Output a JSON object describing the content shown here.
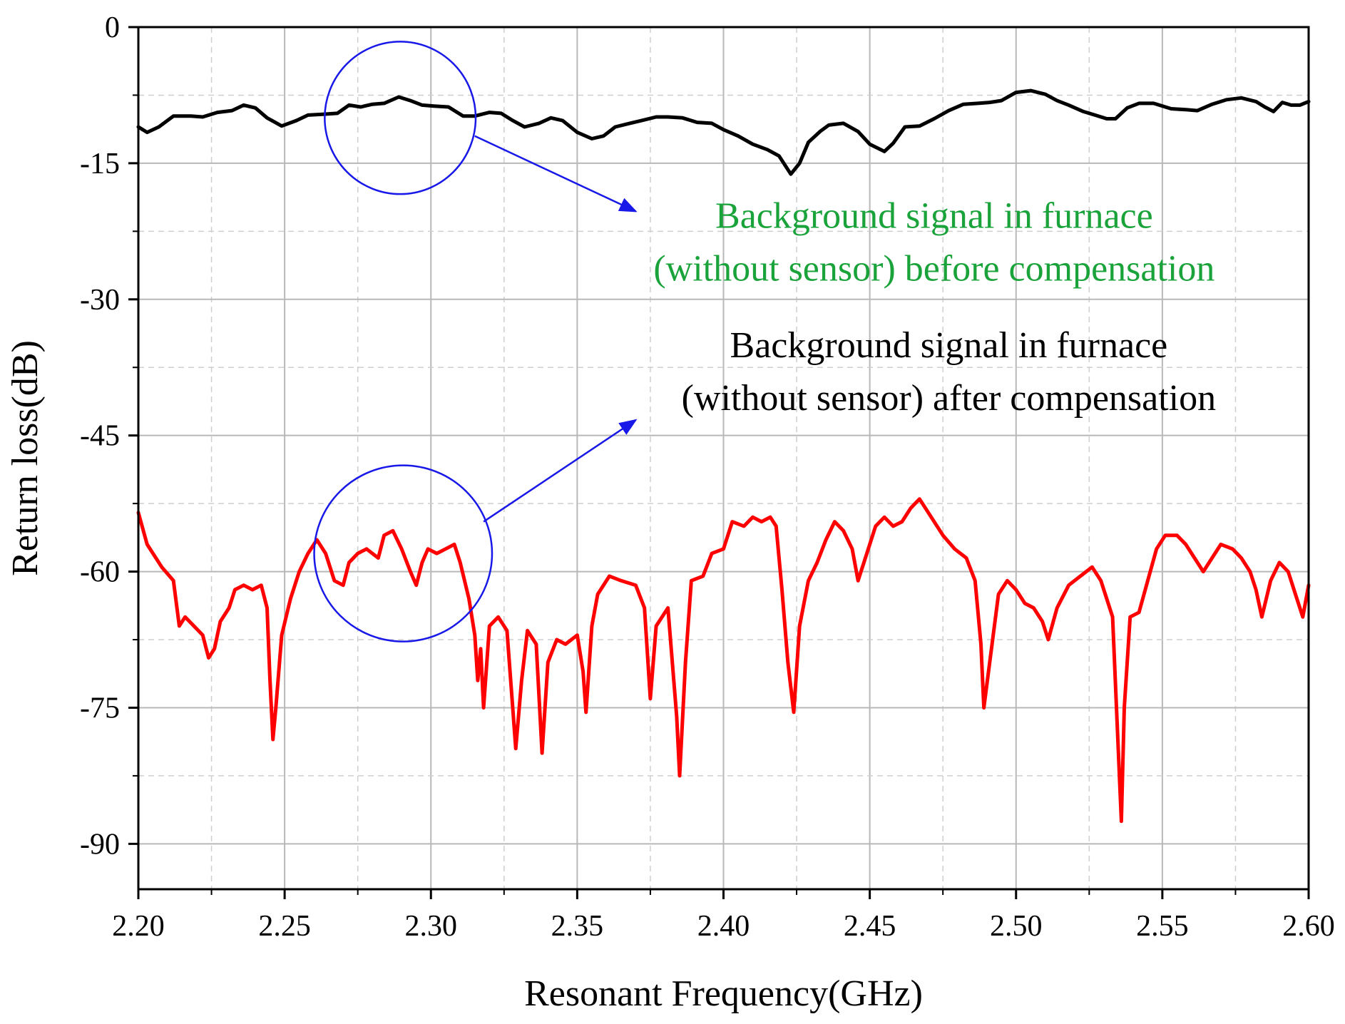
{
  "chart_data": {
    "type": "line",
    "xlabel": "Resonant Frequency(GHz)",
    "ylabel": "Return loss(dB)",
    "xlim": [
      2.2,
      2.6
    ],
    "ylim": [
      -95,
      0
    ],
    "x_ticks": [
      "2.20",
      "2.25",
      "2.30",
      "2.35",
      "2.40",
      "2.45",
      "2.50",
      "2.55",
      "2.60"
    ],
    "y_ticks": [
      "0",
      "-15",
      "-30",
      "-45",
      "-60",
      "-75",
      "-90"
    ],
    "grid": true,
    "series": [
      {
        "color": "#000000",
        "points": [
          [
            2.2,
            -11.0
          ],
          [
            2.203,
            -11.6
          ],
          [
            2.207,
            -11.0
          ],
          [
            2.212,
            -9.8
          ],
          [
            2.218,
            -9.8
          ],
          [
            2.222,
            -9.9
          ],
          [
            2.227,
            -9.4
          ],
          [
            2.232,
            -9.2
          ],
          [
            2.236,
            -8.6
          ],
          [
            2.24,
            -8.9
          ],
          [
            2.244,
            -10.0
          ],
          [
            2.249,
            -10.9
          ],
          [
            2.254,
            -10.3
          ],
          [
            2.258,
            -9.7
          ],
          [
            2.263,
            -9.6
          ],
          [
            2.268,
            -9.5
          ],
          [
            2.272,
            -8.6
          ],
          [
            2.276,
            -8.8
          ],
          [
            2.28,
            -8.5
          ],
          [
            2.284,
            -8.4
          ],
          [
            2.289,
            -7.7
          ],
          [
            2.293,
            -8.1
          ],
          [
            2.297,
            -8.6
          ],
          [
            2.301,
            -8.7
          ],
          [
            2.306,
            -8.8
          ],
          [
            2.311,
            -9.8
          ],
          [
            2.315,
            -9.8
          ],
          [
            2.32,
            -9.4
          ],
          [
            2.324,
            -9.5
          ],
          [
            2.328,
            -10.3
          ],
          [
            2.332,
            -11.0
          ],
          [
            2.337,
            -10.6
          ],
          [
            2.341,
            -10.0
          ],
          [
            2.345,
            -10.3
          ],
          [
            2.35,
            -11.6
          ],
          [
            2.355,
            -12.3
          ],
          [
            2.359,
            -12.0
          ],
          [
            2.363,
            -11.0
          ],
          [
            2.368,
            -10.6
          ],
          [
            2.372,
            -10.3
          ],
          [
            2.377,
            -9.9
          ],
          [
            2.381,
            -9.9
          ],
          [
            2.386,
            -10.0
          ],
          [
            2.391,
            -10.5
          ],
          [
            2.396,
            -10.6
          ],
          [
            2.4,
            -11.3
          ],
          [
            2.405,
            -12.0
          ],
          [
            2.41,
            -12.9
          ],
          [
            2.415,
            -13.5
          ],
          [
            2.419,
            -14.2
          ],
          [
            2.423,
            -16.2
          ],
          [
            2.426,
            -15.0
          ],
          [
            2.429,
            -12.7
          ],
          [
            2.433,
            -11.5
          ],
          [
            2.436,
            -10.8
          ],
          [
            2.441,
            -10.6
          ],
          [
            2.446,
            -11.5
          ],
          [
            2.45,
            -12.9
          ],
          [
            2.455,
            -13.7
          ],
          [
            2.458,
            -12.8
          ],
          [
            2.462,
            -11.0
          ],
          [
            2.467,
            -10.9
          ],
          [
            2.472,
            -10.1
          ],
          [
            2.477,
            -9.2
          ],
          [
            2.482,
            -8.5
          ],
          [
            2.487,
            -8.4
          ],
          [
            2.491,
            -8.3
          ],
          [
            2.495,
            -8.1
          ],
          [
            2.5,
            -7.2
          ],
          [
            2.505,
            -7.0
          ],
          [
            2.51,
            -7.4
          ],
          [
            2.514,
            -8.1
          ],
          [
            2.518,
            -8.6
          ],
          [
            2.523,
            -9.3
          ],
          [
            2.527,
            -9.7
          ],
          [
            2.531,
            -10.1
          ],
          [
            2.534,
            -10.1
          ],
          [
            2.538,
            -8.9
          ],
          [
            2.542,
            -8.4
          ],
          [
            2.547,
            -8.4
          ],
          [
            2.553,
            -9.0
          ],
          [
            2.558,
            -9.1
          ],
          [
            2.562,
            -9.2
          ],
          [
            2.567,
            -8.5
          ],
          [
            2.572,
            -8.0
          ],
          [
            2.577,
            -7.8
          ],
          [
            2.582,
            -8.2
          ],
          [
            2.585,
            -8.8
          ],
          [
            2.588,
            -9.3
          ],
          [
            2.591,
            -8.3
          ],
          [
            2.594,
            -8.6
          ],
          [
            2.597,
            -8.6
          ],
          [
            2.6,
            -8.2
          ]
        ]
      },
      {
        "color": "#ff0000",
        "points": [
          [
            2.2,
            -53.5
          ],
          [
            2.203,
            -57.0
          ],
          [
            2.205,
            -58.0
          ],
          [
            2.208,
            -59.5
          ],
          [
            2.212,
            -61.0
          ],
          [
            2.214,
            -66.0
          ],
          [
            2.216,
            -65.0
          ],
          [
            2.219,
            -66.0
          ],
          [
            2.222,
            -67.0
          ],
          [
            2.224,
            -69.5
          ],
          [
            2.226,
            -68.5
          ],
          [
            2.228,
            -65.5
          ],
          [
            2.231,
            -64.0
          ],
          [
            2.233,
            -62.0
          ],
          [
            2.236,
            -61.5
          ],
          [
            2.239,
            -62.0
          ],
          [
            2.242,
            -61.5
          ],
          [
            2.244,
            -64.0
          ],
          [
            2.245,
            -72.0
          ],
          [
            2.246,
            -78.5
          ],
          [
            2.247,
            -75.0
          ],
          [
            2.249,
            -67.0
          ],
          [
            2.252,
            -63.0
          ],
          [
            2.255,
            -60.0
          ],
          [
            2.258,
            -58.0
          ],
          [
            2.261,
            -56.5
          ],
          [
            2.264,
            -58.0
          ],
          [
            2.267,
            -61.0
          ],
          [
            2.27,
            -61.5
          ],
          [
            2.272,
            -59.0
          ],
          [
            2.275,
            -58.0
          ],
          [
            2.278,
            -57.5
          ],
          [
            2.282,
            -58.5
          ],
          [
            2.284,
            -56.0
          ],
          [
            2.287,
            -55.5
          ],
          [
            2.29,
            -57.5
          ],
          [
            2.293,
            -60.0
          ],
          [
            2.295,
            -61.5
          ],
          [
            2.297,
            -59.0
          ],
          [
            2.299,
            -57.5
          ],
          [
            2.302,
            -58.0
          ],
          [
            2.305,
            -57.5
          ],
          [
            2.308,
            -57.0
          ],
          [
            2.31,
            -59.0
          ],
          [
            2.313,
            -63.0
          ],
          [
            2.315,
            -67.0
          ],
          [
            2.316,
            -72.0
          ],
          [
            2.317,
            -68.5
          ],
          [
            2.318,
            -75.0
          ],
          [
            2.32,
            -66.0
          ],
          [
            2.323,
            -65.0
          ],
          [
            2.326,
            -66.5
          ],
          [
            2.329,
            -79.5
          ],
          [
            2.331,
            -72.0
          ],
          [
            2.333,
            -66.5
          ],
          [
            2.336,
            -68.0
          ],
          [
            2.338,
            -80.0
          ],
          [
            2.34,
            -70.0
          ],
          [
            2.343,
            -67.5
          ],
          [
            2.346,
            -68.0
          ],
          [
            2.35,
            -67.0
          ],
          [
            2.352,
            -71.0
          ],
          [
            2.353,
            -75.5
          ],
          [
            2.355,
            -66.0
          ],
          [
            2.357,
            -62.5
          ],
          [
            2.361,
            -60.5
          ],
          [
            2.365,
            -61.0
          ],
          [
            2.37,
            -61.5
          ],
          [
            2.373,
            -64.0
          ],
          [
            2.375,
            -74.0
          ],
          [
            2.377,
            -66.0
          ],
          [
            2.381,
            -64.0
          ],
          [
            2.384,
            -76.0
          ],
          [
            2.385,
            -82.5
          ],
          [
            2.387,
            -70.0
          ],
          [
            2.389,
            -61.0
          ],
          [
            2.393,
            -60.5
          ],
          [
            2.396,
            -58.0
          ],
          [
            2.4,
            -57.5
          ],
          [
            2.403,
            -54.5
          ],
          [
            2.407,
            -55.0
          ],
          [
            2.41,
            -54.0
          ],
          [
            2.413,
            -54.5
          ],
          [
            2.416,
            -54.0
          ],
          [
            2.418,
            -55.0
          ],
          [
            2.42,
            -62.0
          ],
          [
            2.422,
            -70.0
          ],
          [
            2.424,
            -75.5
          ],
          [
            2.426,
            -66.0
          ],
          [
            2.429,
            -61.0
          ],
          [
            2.432,
            -59.0
          ],
          [
            2.435,
            -56.5
          ],
          [
            2.438,
            -54.5
          ],
          [
            2.441,
            -55.5
          ],
          [
            2.444,
            -57.5
          ],
          [
            2.446,
            -61.0
          ],
          [
            2.449,
            -58.0
          ],
          [
            2.452,
            -55.0
          ],
          [
            2.455,
            -54.0
          ],
          [
            2.458,
            -55.0
          ],
          [
            2.461,
            -54.5
          ],
          [
            2.464,
            -53.0
          ],
          [
            2.467,
            -52.0
          ],
          [
            2.471,
            -54.0
          ],
          [
            2.475,
            -56.0
          ],
          [
            2.479,
            -57.5
          ],
          [
            2.483,
            -58.5
          ],
          [
            2.486,
            -61.0
          ],
          [
            2.488,
            -68.0
          ],
          [
            2.489,
            -75.0
          ],
          [
            2.491,
            -70.0
          ],
          [
            2.494,
            -62.5
          ],
          [
            2.497,
            -61.0
          ],
          [
            2.5,
            -62.0
          ],
          [
            2.503,
            -63.5
          ],
          [
            2.506,
            -64.0
          ],
          [
            2.509,
            -65.5
          ],
          [
            2.511,
            -67.5
          ],
          [
            2.514,
            -64.0
          ],
          [
            2.518,
            -61.5
          ],
          [
            2.522,
            -60.5
          ],
          [
            2.526,
            -59.5
          ],
          [
            2.529,
            -61.0
          ],
          [
            2.533,
            -65.0
          ],
          [
            2.535,
            -80.0
          ],
          [
            2.536,
            -87.5
          ],
          [
            2.537,
            -75.0
          ],
          [
            2.539,
            -65.0
          ],
          [
            2.542,
            -64.5
          ],
          [
            2.545,
            -61.0
          ],
          [
            2.548,
            -57.5
          ],
          [
            2.551,
            -56.0
          ],
          [
            2.555,
            -56.0
          ],
          [
            2.558,
            -57.0
          ],
          [
            2.561,
            -58.5
          ],
          [
            2.564,
            -60.0
          ],
          [
            2.567,
            -58.5
          ],
          [
            2.57,
            -57.0
          ],
          [
            2.574,
            -57.5
          ],
          [
            2.577,
            -58.5
          ],
          [
            2.58,
            -60.0
          ],
          [
            2.582,
            -62.0
          ],
          [
            2.584,
            -65.0
          ],
          [
            2.587,
            -61.0
          ],
          [
            2.59,
            -59.0
          ],
          [
            2.593,
            -60.0
          ],
          [
            2.596,
            -63.0
          ],
          [
            2.598,
            -65.0
          ],
          [
            2.6,
            -61.5
          ]
        ]
      }
    ],
    "circles": [
      {
        "cx": 2.2895,
        "cy": -10.0,
        "rx": 0.0258,
        "ry": 8.4
      },
      {
        "cx": 2.2905,
        "cy": -58.0,
        "rx": 0.0304,
        "ry": 9.7
      }
    ],
    "arrows": [
      {
        "from": [
          2.315,
          -12.0
        ],
        "to": [
          2.37,
          -20.3
        ]
      },
      {
        "from": [
          2.318,
          -54.5
        ],
        "to": [
          2.37,
          -43.3
        ]
      }
    ],
    "annotations": [
      {
        "lines": [
          "Background signal  in furnace",
          "(without sensor) before compensation"
        ],
        "color": "#1aa33a",
        "anchor": [
          2.472,
          -22.1
        ]
      },
      {
        "lines": [
          "Background signal in furnace",
          "(without sensor) after compensation"
        ],
        "color": "#000000",
        "anchor": [
          2.477,
          -36.4
        ]
      }
    ]
  }
}
